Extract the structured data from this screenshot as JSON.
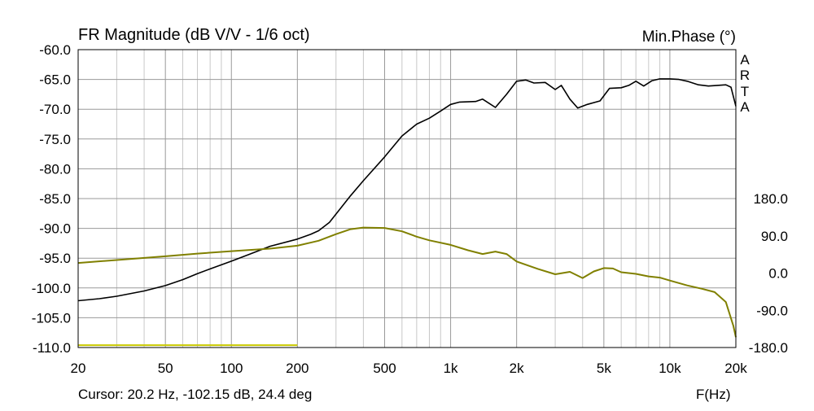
{
  "chart_data": {
    "type": "line",
    "title": "FR Magnitude (dB V/V - 1/6 oct)",
    "right_title": "Min.Phase (°)",
    "watermark": [
      "A",
      "R",
      "T",
      "A"
    ],
    "xlabel": "F(Hz)",
    "cursor_text": "Cursor: 20.2 Hz, -102.15 dB, 24.4 deg",
    "x_scale": "log",
    "xlim": [
      20,
      20000
    ],
    "ylim": [
      -110,
      -60
    ],
    "y2lim": [
      -180,
      180
    ],
    "grid": true,
    "x_ticks": [
      {
        "value": 20,
        "label": "20"
      },
      {
        "value": 50,
        "label": "50"
      },
      {
        "value": 100,
        "label": "100"
      },
      {
        "value": 200,
        "label": "200"
      },
      {
        "value": 500,
        "label": "500"
      },
      {
        "value": 1000,
        "label": "1k"
      },
      {
        "value": 2000,
        "label": "2k"
      },
      {
        "value": 5000,
        "label": "5k"
      },
      {
        "value": 10000,
        "label": "10k"
      },
      {
        "value": 20000,
        "label": "20k"
      }
    ],
    "y_ticks": [
      {
        "value": -60,
        "label": "-60.0"
      },
      {
        "value": -65,
        "label": "-65.0"
      },
      {
        "value": -70,
        "label": "-70.0"
      },
      {
        "value": -75,
        "label": "-75.0"
      },
      {
        "value": -80,
        "label": "-80.0"
      },
      {
        "value": -85,
        "label": "-85.0"
      },
      {
        "value": -90,
        "label": "-90.0"
      },
      {
        "value": -95,
        "label": "-95.0"
      },
      {
        "value": -100,
        "label": "-100.0"
      },
      {
        "value": -105,
        "label": "-105.0"
      },
      {
        "value": -110,
        "label": "-110.0"
      }
    ],
    "y2_ticks": [
      {
        "value": 180,
        "label": "180.0"
      },
      {
        "value": 90,
        "label": "90.0"
      },
      {
        "value": 0,
        "label": "0.0"
      },
      {
        "value": -90,
        "label": "-90.0"
      },
      {
        "value": -180,
        "label": "-180.0"
      }
    ],
    "series": [
      {
        "color": "#000000",
        "axis": "left",
        "points": [
          [
            20,
            -102.15
          ],
          [
            25,
            -101.8
          ],
          [
            30,
            -101.4
          ],
          [
            40,
            -100.5
          ],
          [
            50,
            -99.6
          ],
          [
            60,
            -98.6
          ],
          [
            70,
            -97.6
          ],
          [
            80,
            -96.8
          ],
          [
            100,
            -95.5
          ],
          [
            120,
            -94.4
          ],
          [
            150,
            -93.0
          ],
          [
            200,
            -91.8
          ],
          [
            230,
            -91.0
          ],
          [
            250,
            -90.4
          ],
          [
            280,
            -89.0
          ],
          [
            300,
            -87.6
          ],
          [
            350,
            -84.5
          ],
          [
            400,
            -82.0
          ],
          [
            500,
            -78.0
          ],
          [
            600,
            -74.5
          ],
          [
            700,
            -72.5
          ],
          [
            800,
            -71.5
          ],
          [
            900,
            -70.3
          ],
          [
            1000,
            -69.2
          ],
          [
            1100,
            -68.8
          ],
          [
            1300,
            -68.7
          ],
          [
            1400,
            -68.3
          ],
          [
            1600,
            -69.7
          ],
          [
            1800,
            -67.5
          ],
          [
            2000,
            -65.3
          ],
          [
            2200,
            -65.1
          ],
          [
            2400,
            -65.6
          ],
          [
            2700,
            -65.5
          ],
          [
            3000,
            -66.7
          ],
          [
            3200,
            -66.0
          ],
          [
            3500,
            -68.3
          ],
          [
            3800,
            -69.8
          ],
          [
            4200,
            -69.2
          ],
          [
            4800,
            -68.6
          ],
          [
            5300,
            -66.5
          ],
          [
            6000,
            -66.4
          ],
          [
            6500,
            -66.0
          ],
          [
            7000,
            -65.3
          ],
          [
            7600,
            -66.1
          ],
          [
            8300,
            -65.2
          ],
          [
            9000,
            -64.9
          ],
          [
            10000,
            -64.9
          ],
          [
            11000,
            -65.0
          ],
          [
            12000,
            -65.3
          ],
          [
            13500,
            -65.9
          ],
          [
            15000,
            -66.1
          ],
          [
            16500,
            -66.0
          ],
          [
            18000,
            -65.9
          ],
          [
            19000,
            -66.3
          ],
          [
            20000,
            -69.5
          ]
        ]
      },
      {
        "color": "#808000",
        "axis": "right",
        "points": [
          [
            20,
            24.4
          ],
          [
            30,
            31.5
          ],
          [
            50,
            40.5
          ],
          [
            70,
            47
          ],
          [
            100,
            53
          ],
          [
            150,
            59
          ],
          [
            200,
            66
          ],
          [
            250,
            78
          ],
          [
            300,
            94
          ],
          [
            350,
            106
          ],
          [
            400,
            110
          ],
          [
            500,
            109
          ],
          [
            600,
            101
          ],
          [
            700,
            88
          ],
          [
            800,
            79
          ],
          [
            1000,
            68
          ],
          [
            1200,
            55
          ],
          [
            1400,
            46
          ],
          [
            1600,
            52
          ],
          [
            1800,
            46
          ],
          [
            2000,
            28
          ],
          [
            2500,
            10
          ],
          [
            3000,
            -3
          ],
          [
            3500,
            3
          ],
          [
            4000,
            -12
          ],
          [
            4500,
            4
          ],
          [
            5000,
            12
          ],
          [
            5500,
            11
          ],
          [
            6000,
            2
          ],
          [
            7000,
            -2
          ],
          [
            8000,
            -8
          ],
          [
            9000,
            -11
          ],
          [
            10000,
            -18
          ],
          [
            12000,
            -30
          ],
          [
            14000,
            -38
          ],
          [
            16000,
            -46
          ],
          [
            18000,
            -70
          ],
          [
            19500,
            -128
          ],
          [
            20000,
            -155
          ]
        ]
      }
    ],
    "reference_line": {
      "from": 20,
      "to": 200,
      "value": -109.6,
      "color": "#c8c800"
    }
  }
}
